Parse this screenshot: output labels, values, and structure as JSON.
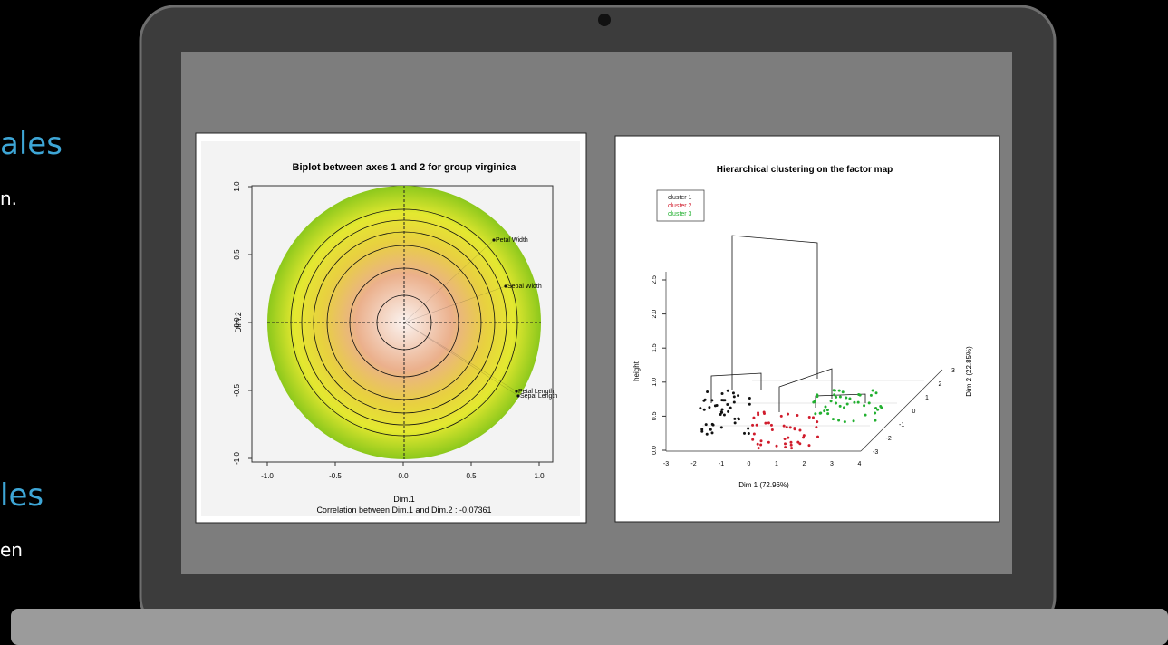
{
  "slide": {
    "left_text": [
      "ales",
      "n.",
      "les",
      "en"
    ]
  },
  "biplot": {
    "title": "Biplot between axes 1 and 2 for group virginica",
    "x_label": "Dim.1",
    "y_label": "Dim.2",
    "caption": "Correlation between Dim.1 and Dim.2 : -0.07361",
    "x_ticks": [
      "-1.0",
      "-0.5",
      "0.0",
      "0.5",
      "1.0"
    ],
    "y_ticks": [
      "1.0",
      "0.5",
      "0.0",
      "-0.5",
      "-1.0"
    ],
    "variables": [
      "Petal Width",
      "Sepal Width",
      "Petal Length",
      "Sepal Length"
    ]
  },
  "cluster_map": {
    "title": "Hierarchical clustering on the factor map",
    "legend": [
      "cluster 1",
      "cluster 2",
      "cluster 3"
    ],
    "y_label": "height",
    "x_label": "Dim 1 (72.96%)",
    "z_label": "Dim 2 (22.85%)",
    "y_ticks": [
      "0.0",
      "0.5",
      "1.0",
      "1.5",
      "2.0",
      "2.5"
    ],
    "x_ticks": [
      "-3",
      "-2",
      "-1",
      "0",
      "1",
      "2",
      "3",
      "4"
    ],
    "z_ticks": [
      "3",
      "2",
      "1",
      "0",
      "-1",
      "-2",
      "-3"
    ]
  }
}
